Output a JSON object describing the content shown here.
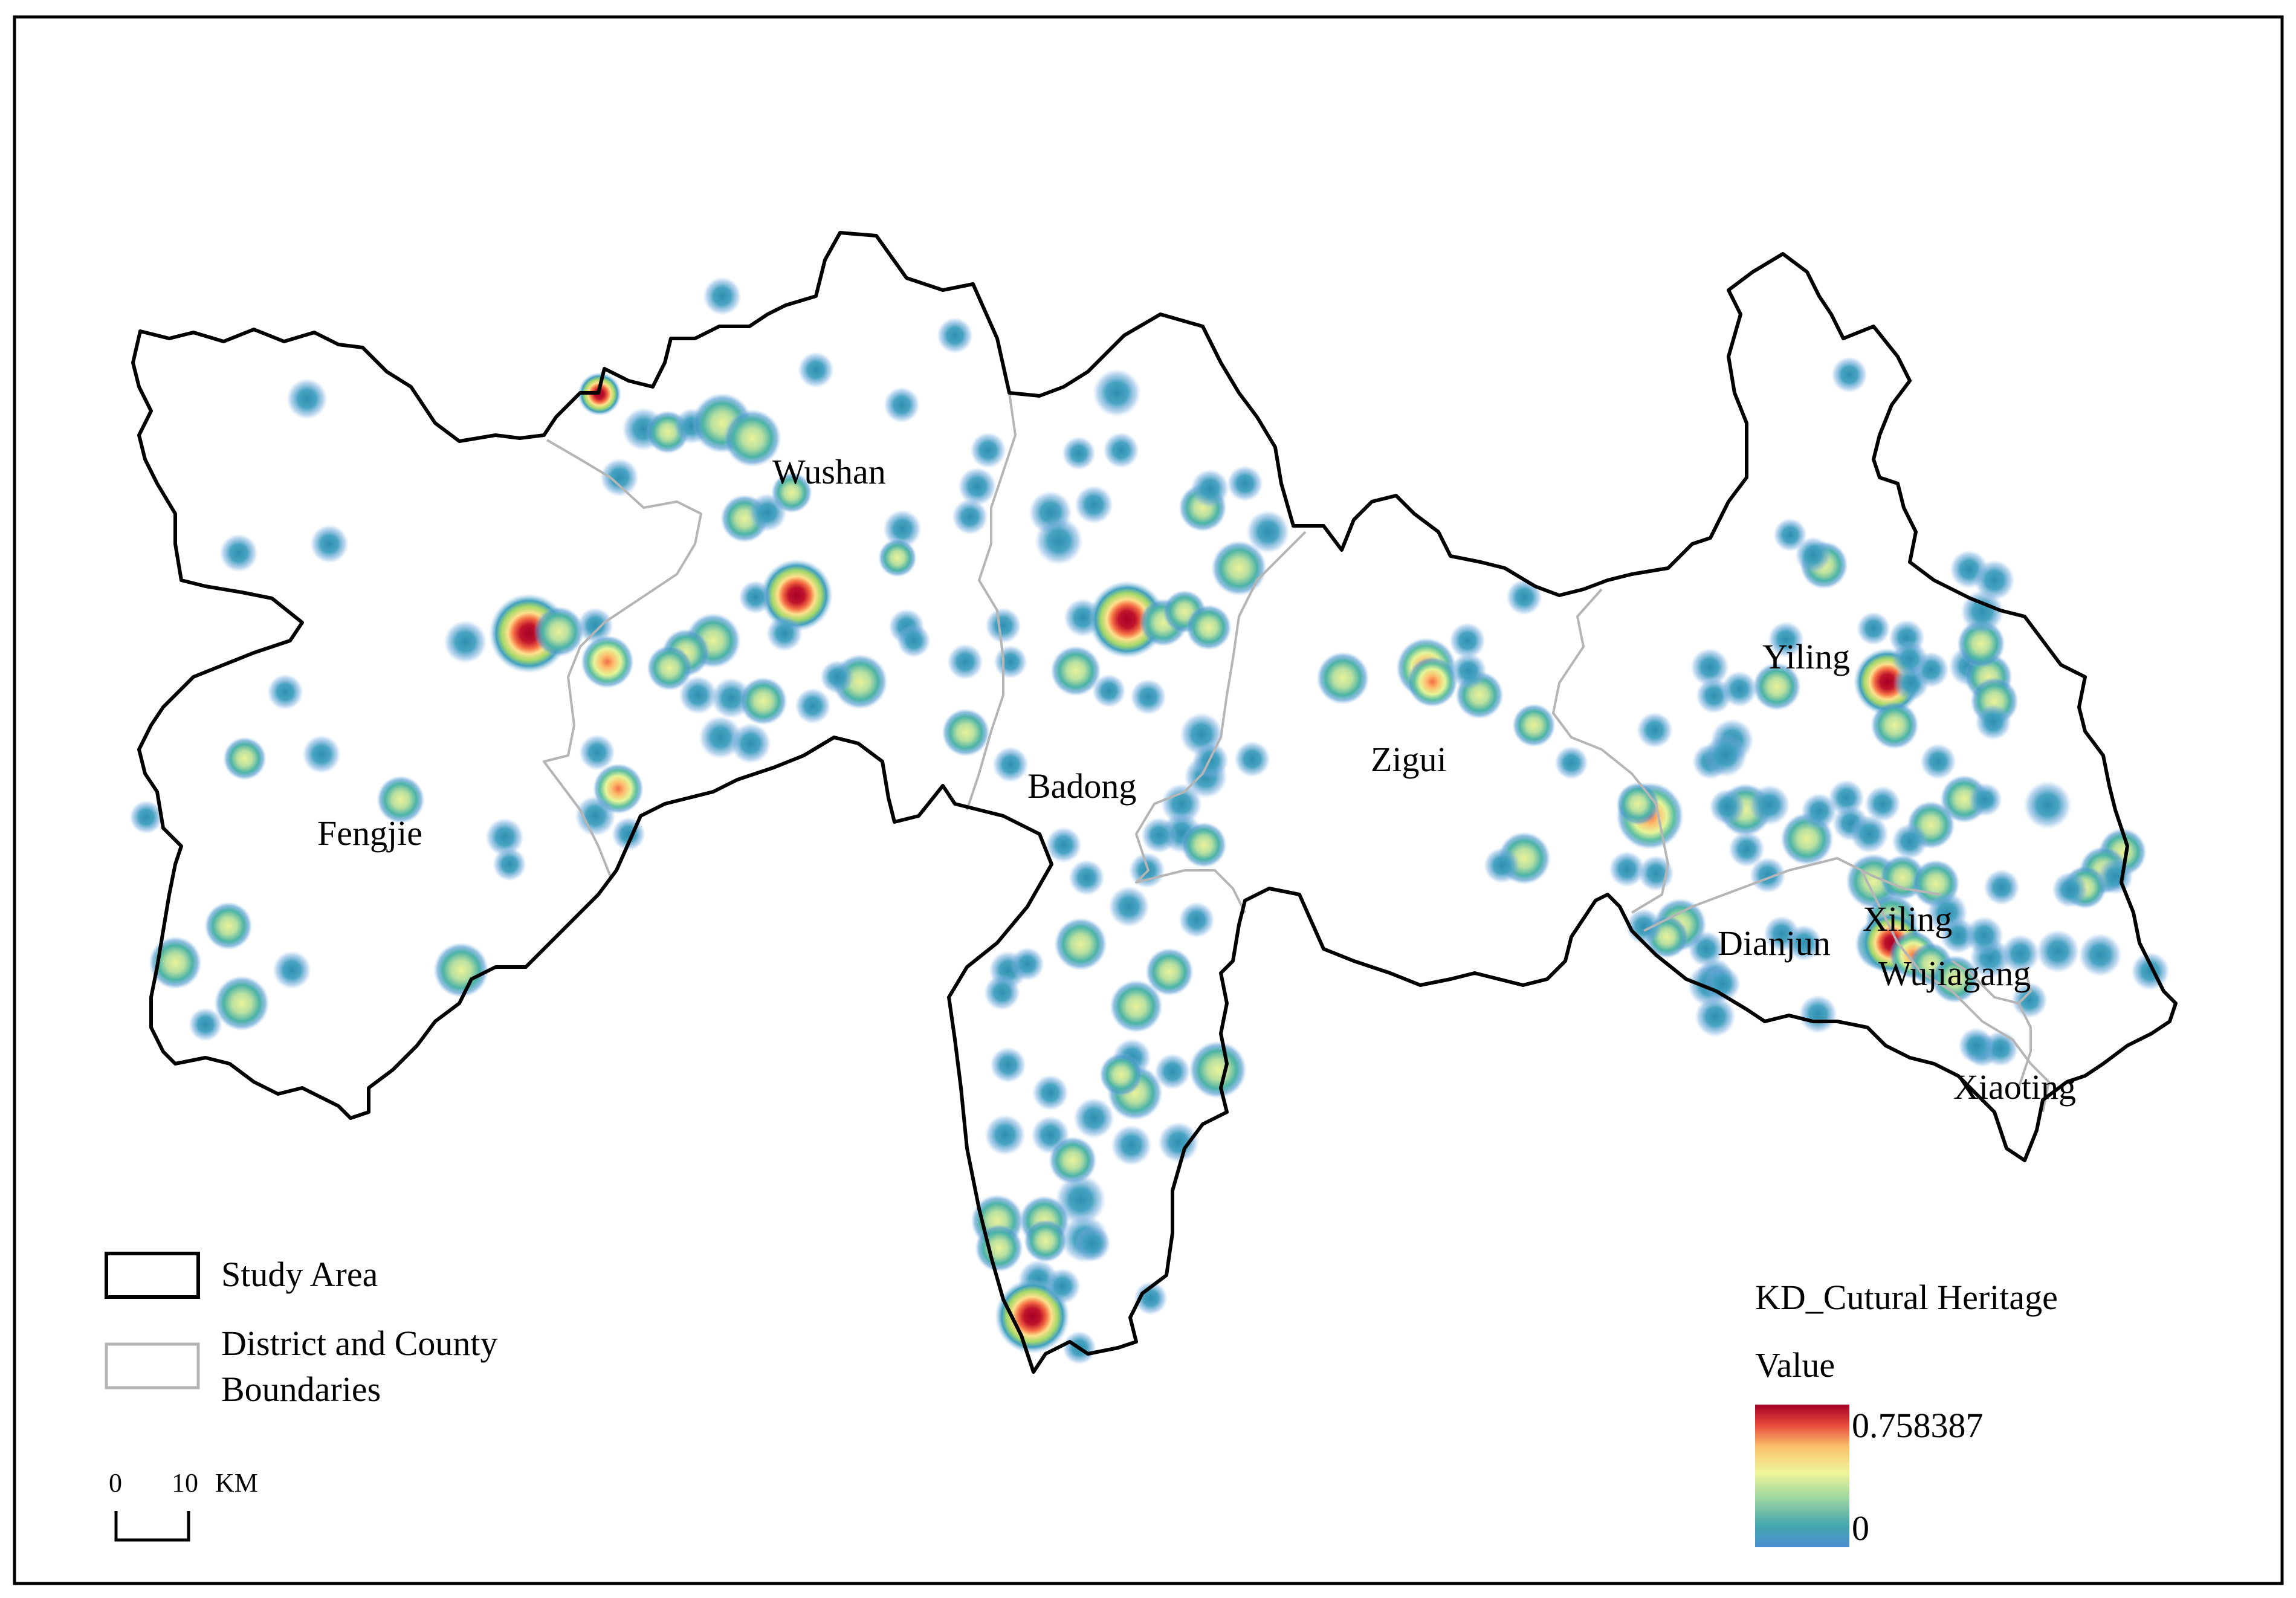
{
  "map": {
    "labels": {
      "fengjie": "Fengjie",
      "wushan": "Wushan",
      "badong": "Badong",
      "zigui": "Zigui",
      "yiling": "Yiling",
      "xiling": "Xiling",
      "dianjun": "Dianjun",
      "wujiagang": "Wujiagang",
      "xiaoting": "Xiaoting"
    }
  },
  "legend": {
    "study_area": "Study Area",
    "district_line1": "District and County",
    "district_line2": "Boundaries",
    "kd_title": "KD_Cutural Heritage",
    "value_label": "Value",
    "max_value": "0.758387",
    "min_value": "0",
    "ramp_colors": [
      "#3a7fc2",
      "#4cb3a4",
      "#e8f096",
      "#f7b660",
      "#e6423a",
      "#a50026"
    ]
  },
  "scale_bar": {
    "start": "0",
    "end": "10",
    "unit": "KM"
  },
  "colors": {
    "study_area_boundary": "#000000",
    "district_boundary": "#b5b5b5",
    "frame": "#000000"
  }
}
